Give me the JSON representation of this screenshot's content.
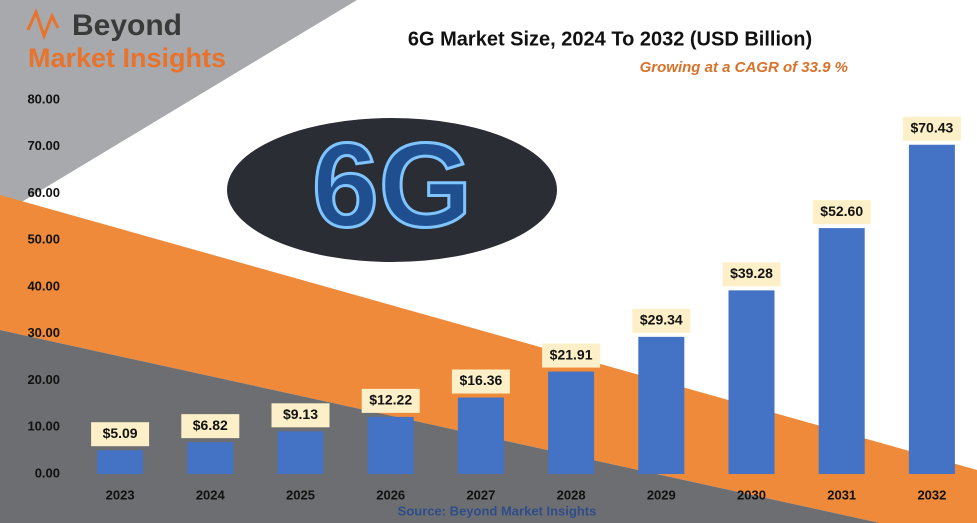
{
  "chart_data": {
    "type": "bar",
    "title": "6G Market Size, 2024 To 2032 (USD Billion)",
    "subtitle": "Growing at a CAGR of 33.9 %",
    "source": "Source: Beyond Market Insights",
    "logo": {
      "line1": "Beyond",
      "line2": "Market Insights"
    },
    "badge": "6G",
    "categories": [
      "2023",
      "2024",
      "2025",
      "2026",
      "2027",
      "2028",
      "2029",
      "2030",
      "2031",
      "2032"
    ],
    "values": [
      5.09,
      6.82,
      9.13,
      12.22,
      16.36,
      21.91,
      29.34,
      39.28,
      52.6,
      70.43
    ],
    "value_labels": [
      "$5.09",
      "$6.82",
      "$9.13",
      "$12.22",
      "$16.36",
      "$21.91",
      "$29.34",
      "$39.28",
      "$52.60",
      "$70.43"
    ],
    "color": "#4472c4",
    "ylim": [
      0,
      80
    ],
    "yticks": [
      {
        "value": 0,
        "label": "0.00"
      },
      {
        "value": 10,
        "label": "10.00"
      },
      {
        "value": 20,
        "label": "20.00"
      },
      {
        "value": 30,
        "label": "30.00"
      },
      {
        "value": 40,
        "label": "40.00"
      },
      {
        "value": 50,
        "label": "50.00"
      },
      {
        "value": 60,
        "label": "60.00"
      },
      {
        "value": 70,
        "label": "70.00"
      },
      {
        "value": 80,
        "label": "80.00"
      }
    ],
    "grid": false
  }
}
